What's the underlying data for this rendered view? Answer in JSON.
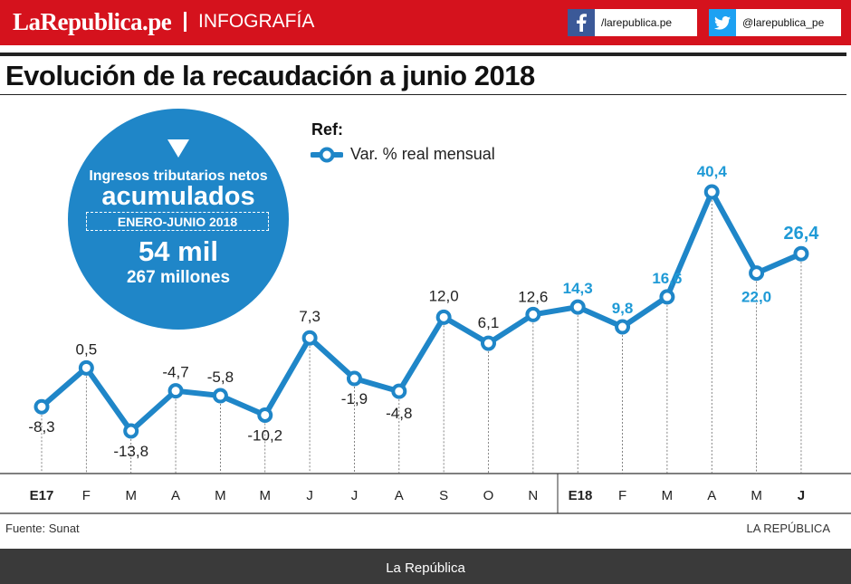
{
  "header": {
    "brand": "LaRepublica.pe",
    "section": "INFOGRAFÍA",
    "facebook_handle": "/larepublica.pe",
    "twitter_handle": "@larepublica_pe",
    "facebook_icon": "facebook-icon",
    "twitter_icon": "twitter-icon",
    "brand_color": "#d5121d"
  },
  "title": "Evolución de la recaudación a junio 2018",
  "info_circle": {
    "line1": "Ingresos tributarios netos",
    "line2": "acumulados",
    "line3": "ENERO-JUNIO 2018",
    "line4": "54 mil",
    "line5": "267 millones",
    "color": "#1f86c8"
  },
  "legend": {
    "ref_label": "Ref:",
    "series_label": "Var. % real mensual"
  },
  "chart_data": {
    "type": "line",
    "title": "Evolución de la recaudación a junio 2018",
    "xlabel": "",
    "ylabel": "Var. % real mensual",
    "ylim": [
      -20,
      45
    ],
    "grid": false,
    "categories": [
      "E17",
      "F",
      "M",
      "A",
      "M",
      "M",
      "J",
      "J",
      "A",
      "S",
      "O",
      "N",
      "E18",
      "F",
      "M",
      "A",
      "M",
      "J"
    ],
    "bold_categories": [
      0,
      12,
      17
    ],
    "series": [
      {
        "name": "Var. % real mensual",
        "values": [
          -8.3,
          0.5,
          -13.8,
          -4.7,
          -5.8,
          -10.2,
          7.3,
          -1.9,
          -4.8,
          12.0,
          6.1,
          12.6,
          14.3,
          9.8,
          16.6,
          40.4,
          22.0,
          26.4
        ],
        "labels": [
          "-8,3",
          "0,5",
          "-13,8",
          "-4,7",
          "-5,8",
          "-10,2",
          "7,3",
          "-1,9",
          "-4,8",
          "12,0",
          "6,1",
          "12,6",
          "14,3",
          "9,8",
          "16,6",
          "40,4",
          "22,0",
          "26,4"
        ],
        "highlight_from_index": 12,
        "line_color": "#1f86c8",
        "highlight_label_color": "#1f9ad6"
      }
    ]
  },
  "footer": {
    "source": "Fuente: Sunat",
    "credit": "LA REPÚBLICA",
    "bottom_bar": "La República"
  }
}
